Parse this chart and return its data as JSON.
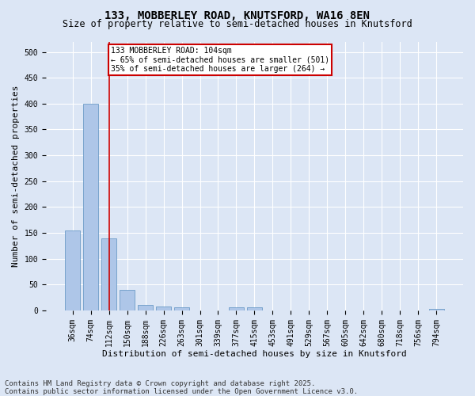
{
  "title1": "133, MOBBERLEY ROAD, KNUTSFORD, WA16 8EN",
  "title2": "Size of property relative to semi-detached houses in Knutsford",
  "xlabel": "Distribution of semi-detached houses by size in Knutsford",
  "ylabel": "Number of semi-detached properties",
  "categories": [
    "36sqm",
    "74sqm",
    "112sqm",
    "150sqm",
    "188sqm",
    "226sqm",
    "263sqm",
    "301sqm",
    "339sqm",
    "377sqm",
    "415sqm",
    "453sqm",
    "491sqm",
    "529sqm",
    "567sqm",
    "605sqm",
    "642sqm",
    "680sqm",
    "718sqm",
    "756sqm",
    "794sqm"
  ],
  "values": [
    155,
    400,
    140,
    40,
    11,
    8,
    6,
    0,
    0,
    6,
    6,
    0,
    0,
    0,
    0,
    0,
    0,
    0,
    0,
    0,
    3
  ],
  "bar_color": "#aec6e8",
  "bar_edge_color": "#5a8fc0",
  "vline_x": 2.0,
  "vline_color": "#cc0000",
  "annotation_box_text": "133 MOBBERLEY ROAD: 104sqm\n← 65% of semi-detached houses are smaller (501)\n35% of semi-detached houses are larger (264) →",
  "annotation_box_color": "#cc0000",
  "annotation_text_fontsize": 7,
  "ylim": [
    0,
    520
  ],
  "yticks": [
    0,
    50,
    100,
    150,
    200,
    250,
    300,
    350,
    400,
    450,
    500
  ],
  "background_color": "#dce6f5",
  "plot_bg_color": "#dce6f5",
  "grid_color": "#ffffff",
  "footer": "Contains HM Land Registry data © Crown copyright and database right 2025.\nContains public sector information licensed under the Open Government Licence v3.0.",
  "title1_fontsize": 10,
  "title2_fontsize": 8.5,
  "xlabel_fontsize": 8,
  "ylabel_fontsize": 8,
  "footer_fontsize": 6.5,
  "tick_fontsize": 7,
  "ytick_fontsize": 7
}
